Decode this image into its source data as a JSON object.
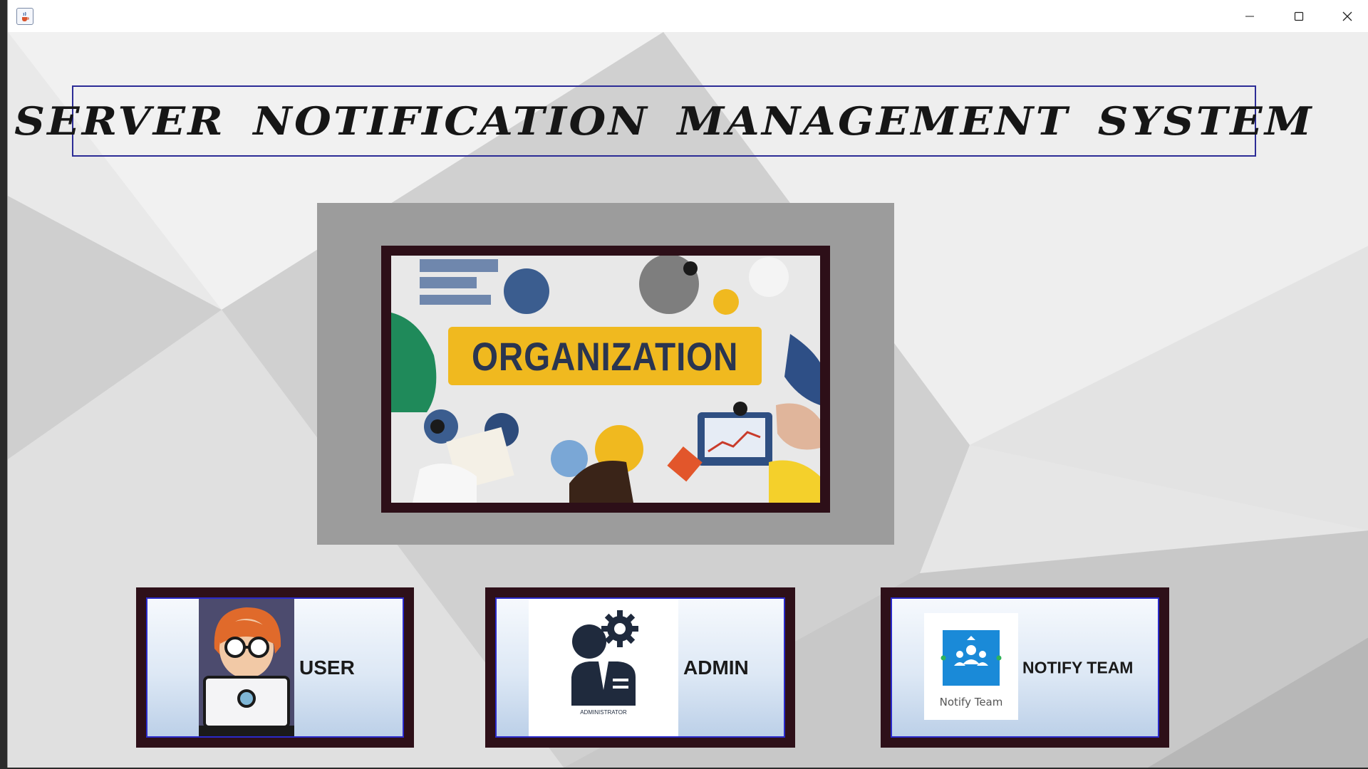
{
  "window": {
    "icon": "java-cup-icon",
    "controls": [
      "minimize-icon",
      "maximize-icon",
      "close-icon"
    ]
  },
  "header": {
    "title": "SERVER  NOTIFICATION  MANAGEMENT  SYSTEM"
  },
  "main_image": {
    "banner_text": "ORGANIZATION"
  },
  "cards": {
    "user": {
      "label": "USER",
      "icon": "user-laptop-icon"
    },
    "admin": {
      "label": "ADMIN",
      "icon": "administrator-icon",
      "icon_caption": "ADMINISTRATOR"
    },
    "notify": {
      "label": "NOTIFY TEAM",
      "icon": "notify-team-icon",
      "icon_caption": "Notify Team"
    }
  },
  "colors": {
    "frame": "#2e1019",
    "border_accent": "#2a2acb",
    "banner": "#f0b91f",
    "notify_blue": "#1a8ad8"
  }
}
